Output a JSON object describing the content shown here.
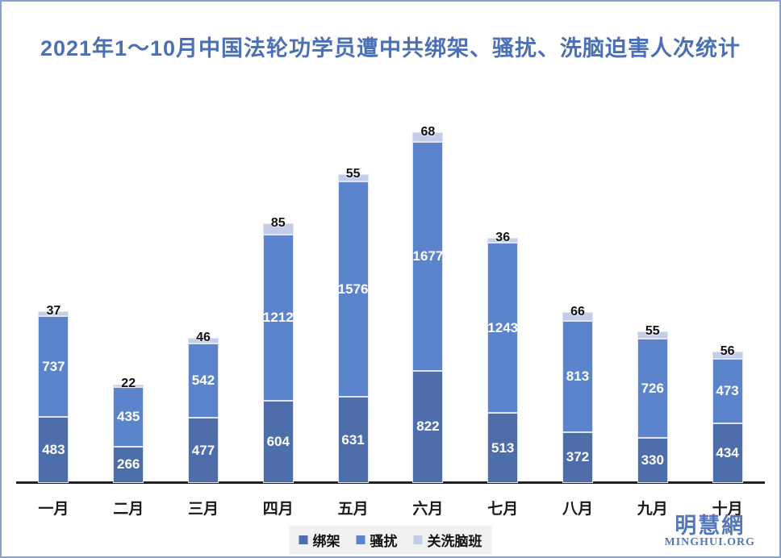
{
  "chart_data": {
    "type": "bar",
    "variant": "stacked",
    "title": "2021年1～10月中国法轮功学员遭中共绑架、骚扰、洗脑迫害人次统计",
    "categories": [
      "一月",
      "二月",
      "三月",
      "四月",
      "五月",
      "六月",
      "七月",
      "八月",
      "九月",
      "十月"
    ],
    "series": [
      {
        "name": "绑架",
        "color": "#4d6dab",
        "values": [
          483,
          266,
          477,
          604,
          631,
          822,
          513,
          372,
          330,
          434
        ]
      },
      {
        "name": "骚扰",
        "color": "#5c84cc",
        "values": [
          737,
          435,
          542,
          1212,
          1576,
          1677,
          1243,
          813,
          726,
          473
        ]
      },
      {
        "name": "关洗脑班",
        "color": "#c3cde8",
        "values": [
          37,
          22,
          46,
          85,
          55,
          68,
          36,
          66,
          55,
          56
        ]
      }
    ],
    "value_labels": true,
    "grid": false,
    "legend_position": "bottom",
    "xlabel": "",
    "ylabel": "",
    "ylim": [
      0,
      2700
    ]
  },
  "watermark": {
    "logo_text": "明慧網",
    "site_text": "MINGHUI.ORG"
  },
  "colors": {
    "title": "#4c70b6",
    "frame_border": "#8aa0cc",
    "axis": "#232323",
    "inside_label": "#ffffff",
    "top_label": "#111111",
    "legend_background": "#f1f1f1"
  }
}
